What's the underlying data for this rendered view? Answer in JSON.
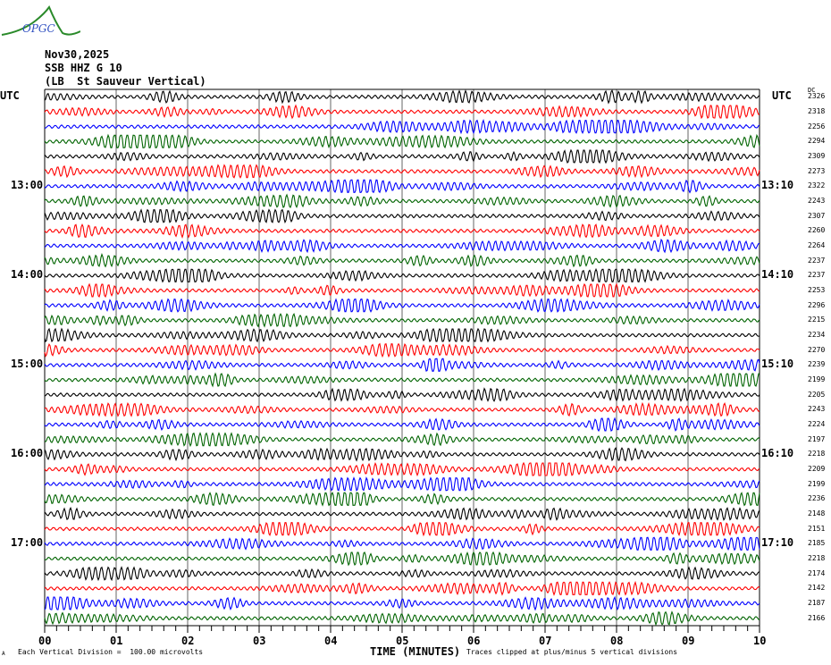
{
  "logo": {
    "text": "OPGC"
  },
  "header": {
    "date": "Nov30,2025",
    "station": "SSB HHZ G 10",
    "location": "(LB  St Sauveur Vertical)"
  },
  "chart_data": {
    "type": "line",
    "subtype": "helicorder",
    "left_axis_label": "UTC",
    "right_axis_label": "UTC",
    "dc_label": "DC",
    "left_time_labels": [
      {
        "row": 6,
        "label": "13:00"
      },
      {
        "row": 12,
        "label": "14:00"
      },
      {
        "row": 18,
        "label": "15:00"
      },
      {
        "row": 24,
        "label": "16:00"
      },
      {
        "row": 30,
        "label": "17:00"
      }
    ],
    "right_time_labels": [
      {
        "row": 6,
        "label": "13:10"
      },
      {
        "row": 12,
        "label": "14:10"
      },
      {
        "row": 18,
        "label": "15:10"
      },
      {
        "row": 24,
        "label": "16:10"
      },
      {
        "row": 30,
        "label": "17:10"
      }
    ],
    "dc_values": [
      "2326",
      "2318",
      "2256",
      "2294",
      "2309",
      "2273",
      "2322",
      "2243",
      "2307",
      "2260",
      "2264",
      "2237",
      "2237",
      "2253",
      "2296",
      "2215",
      "2234",
      "2270",
      "2239",
      "2199",
      "2205",
      "2243",
      "2224",
      "2197",
      "2218",
      "2209",
      "2199",
      "2236",
      "2148",
      "2151",
      "2185",
      "2218",
      "2174",
      "2142",
      "2187",
      "2166"
    ],
    "trace_colors": [
      "#000000",
      "#ff0000",
      "#0000ff",
      "#006400"
    ],
    "x_ticks": [
      "00",
      "01",
      "02",
      "03",
      "04",
      "05",
      "06",
      "07",
      "08",
      "09",
      "10"
    ],
    "xlabel": "TIME (MINUTES)",
    "xlim": [
      0,
      10
    ],
    "grid": true
  },
  "footer": {
    "mark": "A",
    "scale_note": "Each Vertical Division =  100.00 microvolts",
    "clip_note": "Traces clipped at plus/minus 5 vertical divisions"
  }
}
